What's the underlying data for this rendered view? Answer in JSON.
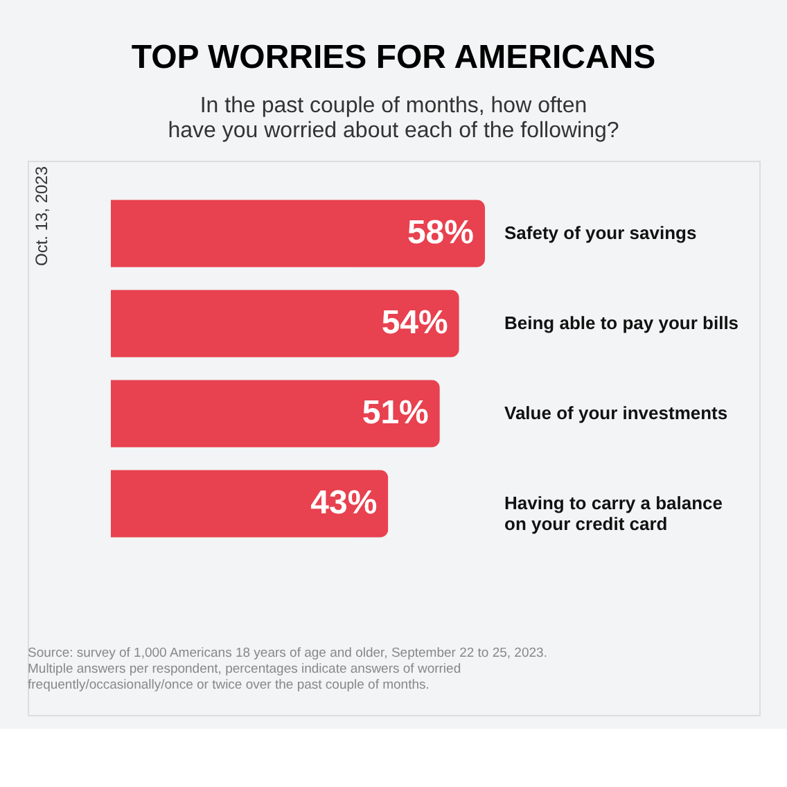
{
  "chart_data": {
    "type": "bar",
    "orientation": "horizontal",
    "title": "TOP WORRIES FOR AMERICANS",
    "subtitle": "In the past couple of months, how often\nhave you worried about each of the following?",
    "categories": [
      "Safety of your savings",
      "Being able to pay your bills",
      "Value of your investments",
      "Having to carry a balance\non your credit card"
    ],
    "values": [
      58,
      54,
      51,
      43
    ],
    "color": "#e8414f",
    "data_labels": true,
    "value_labels": [
      "58%",
      "54%",
      "51%",
      "43%"
    ],
    "annotations": [
      "Oct. 13, 2023",
      "Source: survey of 1,000 Americans 18 years of age and older, September 22 to 25, 2023.\nMultiple answers per respondent, percentages indicate answers of worried\nfrequently/occasionally/once or twice over the past couple of months."
    ]
  }
}
